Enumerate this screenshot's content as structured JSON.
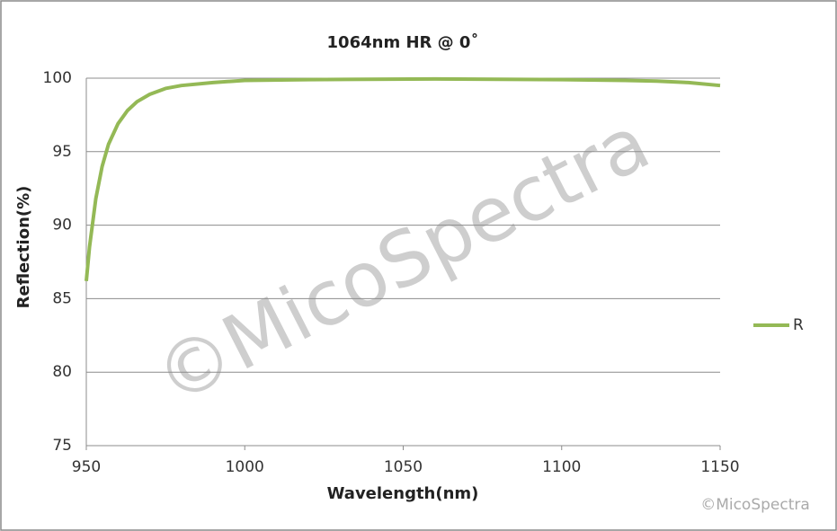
{
  "chart_data": {
    "type": "line",
    "title": "1064nm HR @ 0˚",
    "x_label": "Wavelength(nm)",
    "y_label": "Reflection(%)",
    "x": [
      950,
      951,
      953,
      955,
      957,
      960,
      963,
      966,
      970,
      975,
      980,
      990,
      1000,
      1020,
      1060,
      1100,
      1120,
      1130,
      1140,
      1150
    ],
    "series": [
      {
        "name": "R",
        "color": "#94b956",
        "values": [
          86.2,
          88.5,
          91.8,
          94.0,
          95.5,
          96.9,
          97.8,
          98.4,
          98.9,
          99.3,
          99.5,
          99.7,
          99.85,
          99.9,
          99.95,
          99.9,
          99.85,
          99.8,
          99.7,
          99.5
        ]
      }
    ],
    "xlim": [
      950,
      1150
    ],
    "xticks": [
      950,
      1000,
      1050,
      1100,
      1150
    ],
    "ylim": [
      75,
      100
    ],
    "yticks": [
      75,
      80,
      85,
      90,
      95,
      100
    ],
    "grid": true,
    "legend": "right",
    "watermark": "©MicoSpectra",
    "corner_mark": "©MicoSpectra"
  }
}
